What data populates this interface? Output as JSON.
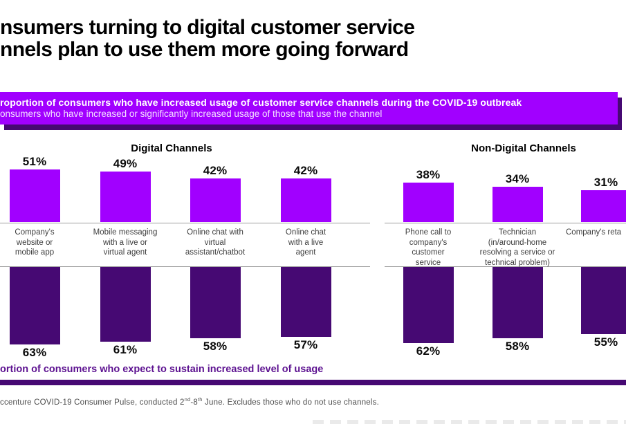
{
  "title": {
    "line1": "nsumers turning to digital customer service",
    "line2": "nnels plan to use them more going forward"
  },
  "banner": {
    "heading": "roportion of consumers who have increased usage of customer service channels during the COVID-19 outbreak",
    "subheading": "onsumers who have increased or significantly increased usage of those that use the channel"
  },
  "chart_data": {
    "type": "bar",
    "title": "roportion of consumers who have increased usage of customer service channels during the COVID-19 outbreak",
    "sections": [
      {
        "label": "Digital Channels",
        "channel_indexes": [
          0,
          1,
          2,
          3
        ]
      },
      {
        "label": "Non-Digital Channels",
        "channel_indexes": [
          4,
          5,
          6
        ]
      }
    ],
    "categories": [
      "Company's website or mobile app",
      "Mobile messaging with a live or virtual agent",
      "Online chat with virtual assistant/chatbot",
      "Online chat with a live agent",
      "Phone call to company's customer service",
      "Technician (in/around-home resolving a service or technical problem)",
      "Company's reta"
    ],
    "series": [
      {
        "name": "Increased usage during COVID-19 outbreak",
        "position": "top",
        "color": "#A100FF",
        "values": [
          51,
          49,
          42,
          42,
          38,
          34,
          31
        ]
      },
      {
        "name": "Expect to sustain increased level of usage",
        "position": "bottom",
        "color": "#460973",
        "values": [
          63,
          61,
          58,
          57,
          62,
          58,
          55
        ]
      }
    ],
    "value_format": "percent",
    "legend_position": "none",
    "grid": false
  },
  "channels": [
    {
      "top_pct": "51%",
      "bottom_pct": "63%",
      "label_lines": [
        "Company's",
        "website or",
        "mobile app"
      ]
    },
    {
      "top_pct": "49%",
      "bottom_pct": "61%",
      "label_lines": [
        "Mobile messaging",
        "with a live or",
        "virtual agent"
      ]
    },
    {
      "top_pct": "42%",
      "bottom_pct": "58%",
      "label_lines": [
        "Online chat with",
        "virtual",
        "assistant/chatbot"
      ]
    },
    {
      "top_pct": "42%",
      "bottom_pct": "57%",
      "label_lines": [
        "Online chat",
        "with a live",
        "agent"
      ]
    },
    {
      "top_pct": "38%",
      "bottom_pct": "62%",
      "label_lines": [
        "Phone call to",
        "company's",
        "customer",
        "service"
      ]
    },
    {
      "top_pct": "34%",
      "bottom_pct": "58%",
      "label_lines": [
        "Technician",
        "(in/around-home",
        "resolving a service or",
        "technical problem)"
      ]
    },
    {
      "top_pct": "31%",
      "bottom_pct": "55%",
      "label_lines": [
        "Company's reta"
      ]
    }
  ],
  "caption": "ortion of consumers who expect to sustain increased level of usage",
  "source": {
    "part1": "ccenture COVID-19 Consumer Pulse, conducted 2",
    "sup1": "nd",
    "part2": "-8",
    "sup2": "th",
    "part3": " June. Excludes those who do not use channels."
  },
  "colors": {
    "bright_purple": "#A100FF",
    "dark_purple": "#460973",
    "caption_purple": "#5C1190",
    "axis_gray": "#9b9b9b",
    "label_gray": "#3d3d3d"
  }
}
